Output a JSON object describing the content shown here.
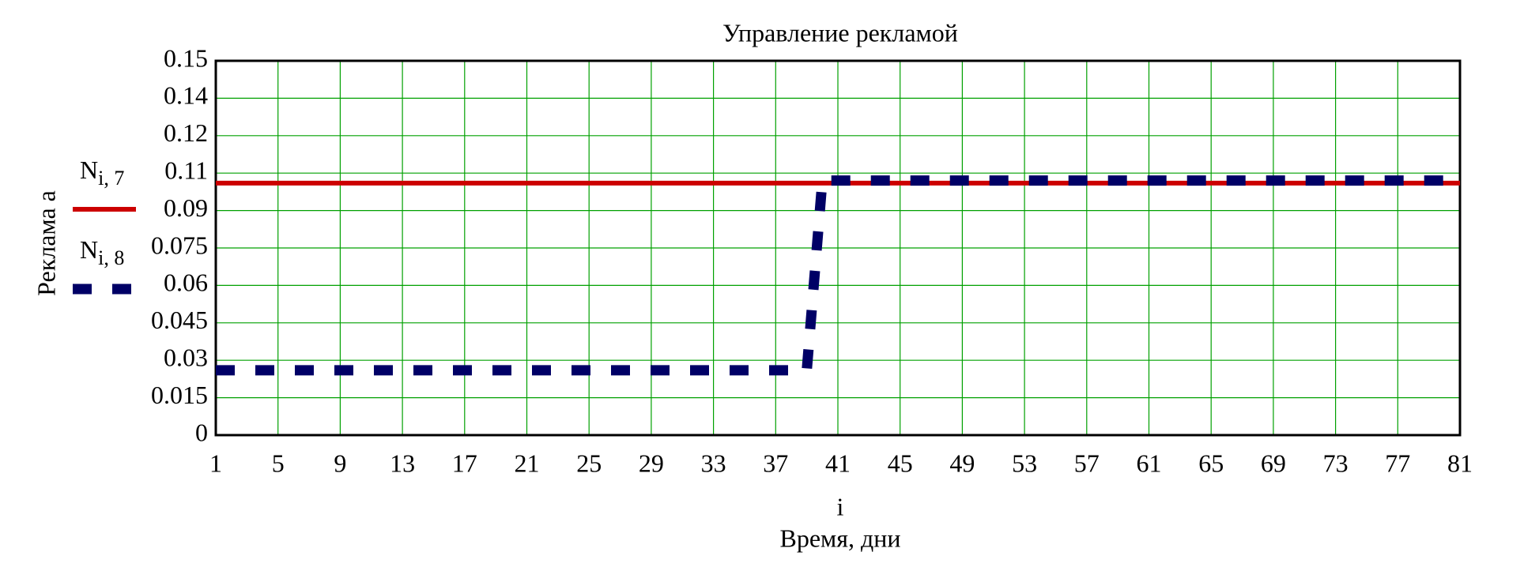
{
  "chart_data": {
    "type": "line",
    "title": "Управление рекламой",
    "x_label": "i",
    "x_label_2": "Время, дни",
    "y_label": "Реклама a",
    "xlim": [
      1,
      81
    ],
    "xticks": [
      1,
      5,
      9,
      13,
      17,
      21,
      25,
      29,
      33,
      37,
      41,
      45,
      49,
      53,
      57,
      61,
      65,
      69,
      73,
      77,
      81
    ],
    "ylim": [
      0,
      0.15
    ],
    "yticks": [
      0,
      0.015,
      0.03,
      0.045,
      0.06,
      0.075,
      0.09,
      {
        "value": 0.105,
        "label": "0.11"
      },
      0.12,
      {
        "value": 0.135,
        "label": "0.14"
      },
      0.15
    ],
    "grid": true,
    "series": [
      {
        "name": "N",
        "subscript": "i, 7",
        "color": "#cc0000",
        "dashed": false,
        "x": [
          1,
          81
        ],
        "values": [
          0.101,
          0.101
        ]
      },
      {
        "name": "N",
        "subscript": "i, 8",
        "color": "#000066",
        "dashed": true,
        "x": [
          1,
          39,
          40,
          81
        ],
        "values": [
          0.026,
          0.026,
          0.102,
          0.102
        ]
      }
    ]
  }
}
